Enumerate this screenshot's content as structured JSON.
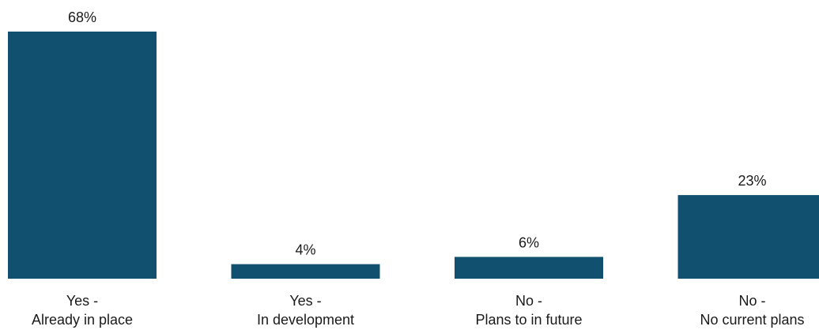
{
  "chart_data": {
    "type": "bar",
    "categories": [
      [
        "Yes -",
        "Already in place"
      ],
      [
        "Yes -",
        "In development"
      ],
      [
        "No -",
        "Plans to in future"
      ],
      [
        "No -",
        "No current plans"
      ]
    ],
    "values": [
      68,
      4,
      6,
      23
    ],
    "data_labels": [
      "68%",
      "4%",
      "6%",
      "23%"
    ],
    "ylim": [
      0,
      68
    ],
    "grid": false,
    "legend": "none",
    "bar_color": "#12506f"
  }
}
